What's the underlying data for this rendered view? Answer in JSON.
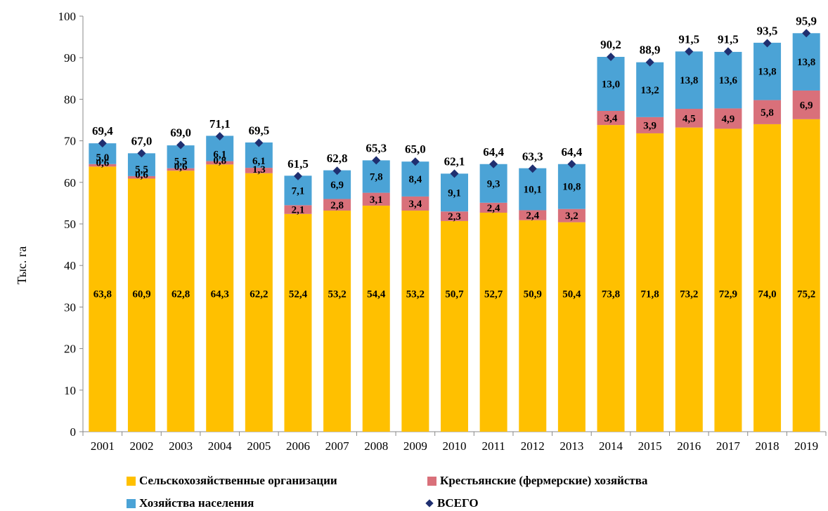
{
  "chart_data": {
    "type": "bar",
    "stacked": true,
    "ylabel": "Тыс. га",
    "ylim": [
      0,
      100
    ],
    "yticks": [
      0,
      10,
      20,
      30,
      40,
      50,
      60,
      70,
      80,
      90,
      100
    ],
    "categories": [
      "2001",
      "2002",
      "2003",
      "2004",
      "2005",
      "2006",
      "2007",
      "2008",
      "2009",
      "2010",
      "2011",
      "2012",
      "2013",
      "2014",
      "2015",
      "2016",
      "2017",
      "2018",
      "2019"
    ],
    "series": [
      {
        "name": "Сельскохозяйственные организации",
        "color": "#ffc000",
        "values": [
          63.8,
          60.9,
          62.8,
          64.3,
          62.2,
          52.4,
          53.2,
          54.4,
          53.2,
          50.7,
          52.7,
          50.9,
          50.4,
          73.8,
          71.8,
          73.2,
          72.9,
          74.0,
          75.2
        ],
        "labels": [
          "63,8",
          "60,9",
          "62,8",
          "64,3",
          "62,2",
          "52,4",
          "53,2",
          "54,4",
          "53,2",
          "50,7",
          "52,7",
          "50,9",
          "50,4",
          "73,8",
          "71,8",
          "73,2",
          "72,9",
          "74,0",
          "75,2"
        ]
      },
      {
        "name": "Крестьянские (фермерские) хозяйства",
        "color": "#d9707a",
        "values": [
          0.6,
          0.6,
          0.6,
          0.8,
          1.3,
          2.1,
          2.8,
          3.1,
          3.4,
          2.3,
          2.4,
          2.4,
          3.2,
          3.4,
          3.9,
          4.5,
          4.9,
          5.8,
          6.9
        ],
        "labels": [
          "0,6",
          "0,6",
          "0,6",
          "0,8",
          "1,3",
          "2,1",
          "2,8",
          "3,1",
          "3,4",
          "2,3",
          "2,4",
          "2,4",
          "3,2",
          "3,4",
          "3,9",
          "4,5",
          "4,9",
          "5,8",
          "6,9"
        ]
      },
      {
        "name": "Хозяйства населения",
        "color": "#4ba3d6",
        "values": [
          5.0,
          5.5,
          5.5,
          6.1,
          6.1,
          7.1,
          6.9,
          7.8,
          8.4,
          9.1,
          9.3,
          10.1,
          10.8,
          13.0,
          13.2,
          13.8,
          13.6,
          13.8,
          13.8
        ],
        "labels": [
          "5,0",
          "5,5",
          "5,5",
          "6,1",
          "6,1",
          "7,1",
          "6,9",
          "7,8",
          "8,4",
          "9,1",
          "9,3",
          "10,1",
          "10,8",
          "13,0",
          "13,2",
          "13,8",
          "13,6",
          "13,8",
          "13,8"
        ]
      }
    ],
    "total": {
      "name": "ВСЕГО",
      "color": "#1f2f70",
      "values": [
        69.4,
        67.0,
        69.0,
        71.1,
        69.5,
        61.5,
        62.8,
        65.3,
        65.0,
        62.1,
        64.4,
        63.3,
        64.4,
        90.2,
        88.9,
        91.5,
        91.5,
        93.5,
        95.9
      ],
      "labels": [
        "69,4",
        "67,0",
        "69,0",
        "71,1",
        "69,5",
        "61,5",
        "62,8",
        "65,3",
        "65,0",
        "62,1",
        "64,4",
        "63,3",
        "64,4",
        "90,2",
        "88,9",
        "91,5",
        "91,5",
        "93,5",
        "95,9"
      ]
    },
    "legend_position": "bottom",
    "grid": false
  },
  "legend": {
    "item1": "Сельскохозяйственные организации",
    "item2": "Крестьянские (фермерские) хозяйства",
    "item3": "Хозяйства населения",
    "item4": "ВСЕГО"
  }
}
